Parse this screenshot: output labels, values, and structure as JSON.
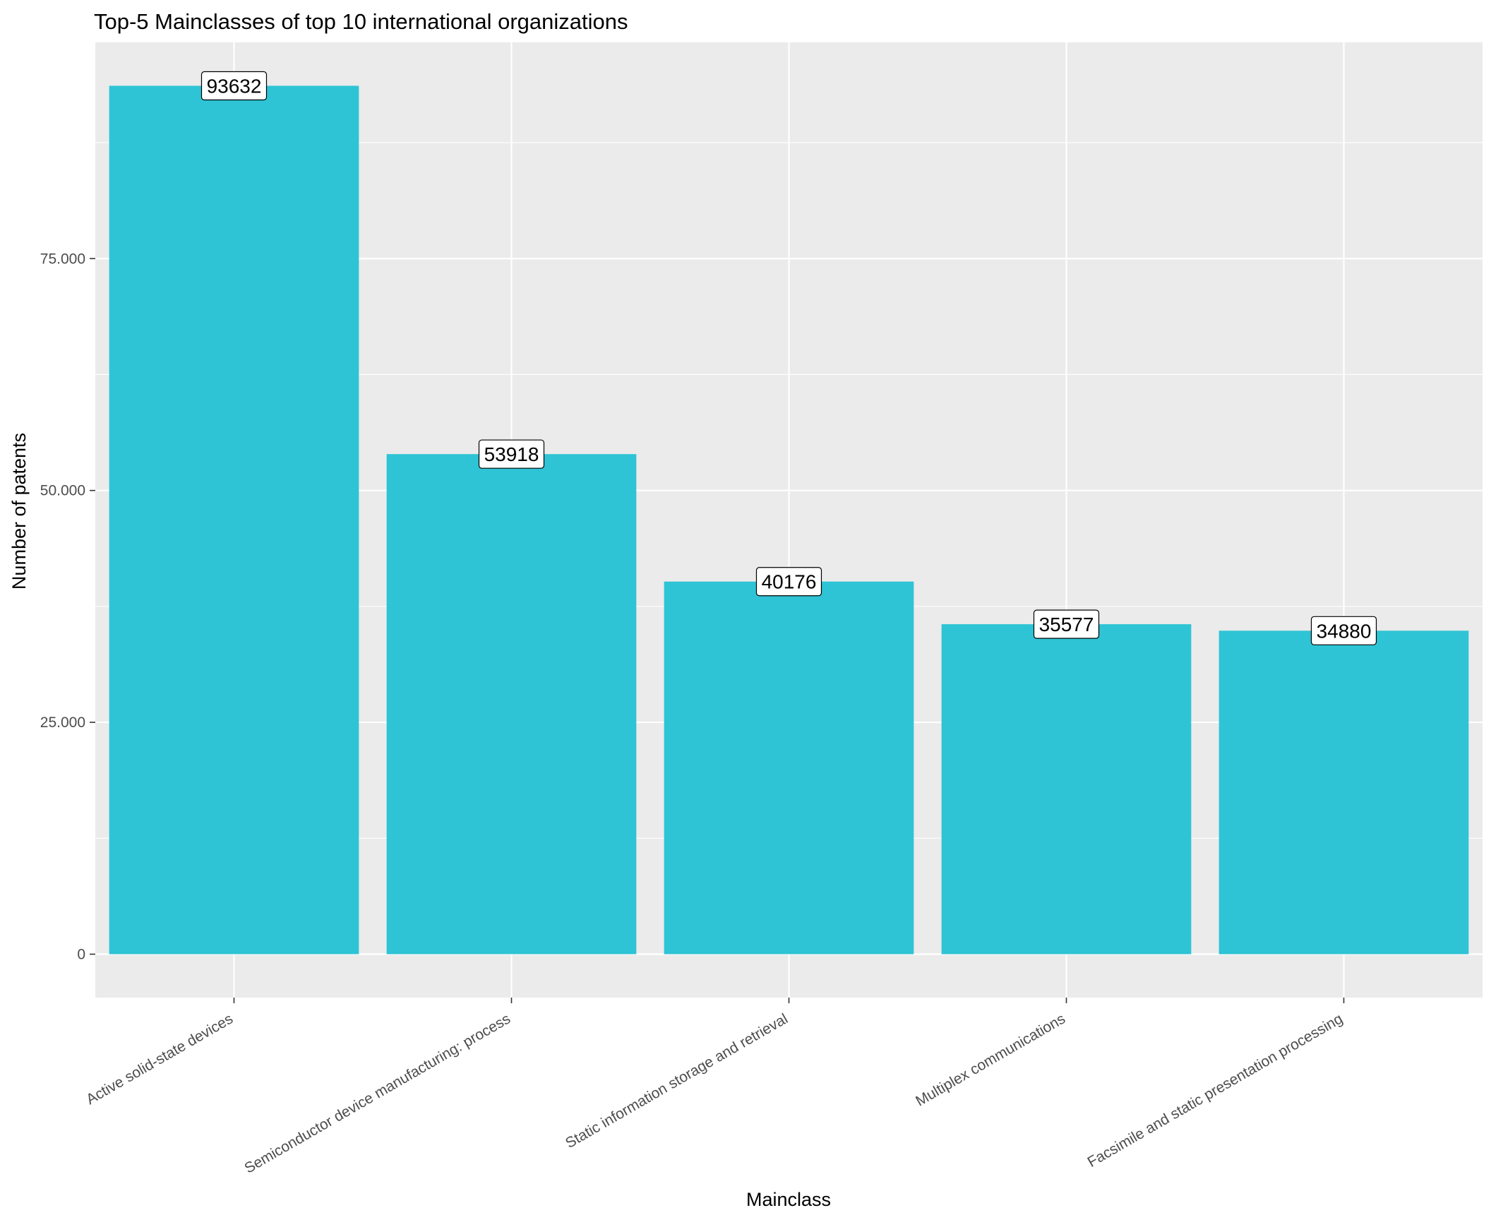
{
  "chart_data": {
    "type": "bar",
    "title": "Top-5 Mainclasses of top 10 international organizations",
    "xlabel": "Mainclass",
    "ylabel": "Number of patents",
    "categories": [
      "Active solid-state devices",
      "Semiconductor device manufacturing: process",
      "Static information storage and retrieval",
      "Multiplex communications",
      "Facsimile and static presentation processing"
    ],
    "values": [
      93632,
      53918,
      40176,
      35577,
      34880
    ],
    "data_labels": [
      "93632",
      "53918",
      "40176",
      "35577",
      "34880"
    ],
    "ylim": [
      -4681.6,
      98313.6
    ],
    "yticks": [
      0,
      25000,
      50000,
      75000
    ],
    "ytick_labels": [
      "0",
      "25.000",
      "50.000",
      "75.000"
    ],
    "grid": true,
    "legend": "none",
    "colors": {
      "bar": "#2EC4D5",
      "panel": "#EBEBEB",
      "grid": "#FFFFFF",
      "label_box": "#FFFFFF"
    }
  }
}
